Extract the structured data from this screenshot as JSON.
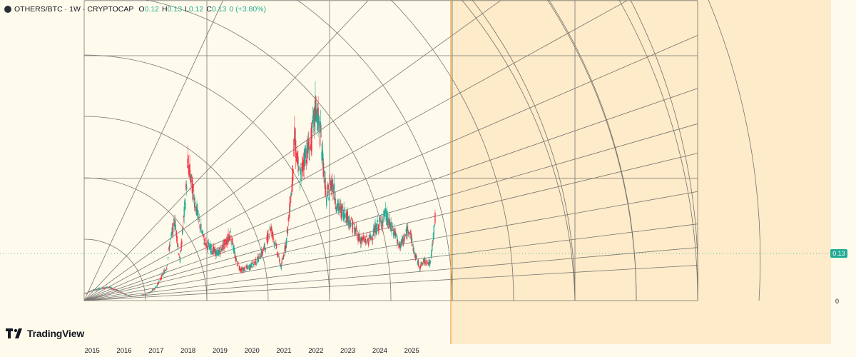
{
  "header": {
    "symbol": "OTHERS/BTC",
    "separator1": "·",
    "interval": "1W",
    "separator2": "·",
    "exchange": "CRYPTOCAP",
    "open_label": "O",
    "open_value": "0.12",
    "high_label": "H",
    "high_value": "0.13",
    "low_label": "L",
    "low_value": "0.12",
    "close_label": "C",
    "close_value": "0.13",
    "change": "0 (+3.80%)"
  },
  "price_scale": {
    "last_price_tag": "0.13",
    "zero_label": "0"
  },
  "time_axis": {
    "labels": [
      "2015",
      "2016",
      "2017",
      "2018",
      "2019",
      "2020",
      "2021",
      "2022",
      "2023",
      "2024",
      "2025"
    ]
  },
  "branding": {
    "logo_text": "TradingView"
  },
  "colors": {
    "background": "#fffbec",
    "projection_zone": "#fdebca",
    "vertical_marker": "#f0a040",
    "up_candle": "#22ab94",
    "down_candle": "#f23645",
    "grid_lines": "#555555",
    "accent": "#22ab94"
  },
  "chart_data": {
    "type": "candlestick",
    "symbol": "OTHERS/BTC",
    "interval": "1W",
    "x_range": [
      "2014-10",
      "2026-09"
    ],
    "y_range": [
      0,
      0.32
    ],
    "last_close": 0.13,
    "overlay": "gann-square-fan",
    "series": [
      {
        "date": "2014-10",
        "v": 0.01
      },
      {
        "date": "2015-01",
        "v": 0.015
      },
      {
        "date": "2015-04",
        "v": 0.018
      },
      {
        "date": "2015-07",
        "v": 0.02
      },
      {
        "date": "2015-10",
        "v": 0.016
      },
      {
        "date": "2016-01",
        "v": 0.01
      },
      {
        "date": "2016-04",
        "v": 0.006
      },
      {
        "date": "2016-07",
        "v": 0.008
      },
      {
        "date": "2016-10",
        "v": 0.01
      },
      {
        "date": "2017-01",
        "v": 0.02
      },
      {
        "date": "2017-03",
        "v": 0.035
      },
      {
        "date": "2017-05",
        "v": 0.05
      },
      {
        "date": "2017-06",
        "v": 0.08
      },
      {
        "date": "2017-08",
        "v": 0.12
      },
      {
        "date": "2017-10",
        "v": 0.06
      },
      {
        "date": "2017-12",
        "v": 0.15
      },
      {
        "date": "2018-01",
        "v": 0.205
      },
      {
        "date": "2018-03",
        "v": 0.16
      },
      {
        "date": "2018-05",
        "v": 0.12
      },
      {
        "date": "2018-07",
        "v": 0.09
      },
      {
        "date": "2018-09",
        "v": 0.08
      },
      {
        "date": "2018-12",
        "v": 0.07
      },
      {
        "date": "2019-03",
        "v": 0.085
      },
      {
        "date": "2019-05",
        "v": 0.1
      },
      {
        "date": "2019-07",
        "v": 0.06
      },
      {
        "date": "2019-09",
        "v": 0.045
      },
      {
        "date": "2019-12",
        "v": 0.05
      },
      {
        "date": "2020-03",
        "v": 0.06
      },
      {
        "date": "2020-06",
        "v": 0.08
      },
      {
        "date": "2020-08",
        "v": 0.11
      },
      {
        "date": "2020-10",
        "v": 0.08
      },
      {
        "date": "2020-12",
        "v": 0.05
      },
      {
        "date": "2021-02",
        "v": 0.09
      },
      {
        "date": "2021-04",
        "v": 0.17
      },
      {
        "date": "2021-05",
        "v": 0.24
      },
      {
        "date": "2021-07",
        "v": 0.18
      },
      {
        "date": "2021-09",
        "v": 0.22
      },
      {
        "date": "2021-11",
        "v": 0.23
      },
      {
        "date": "2022-01",
        "v": 0.29
      },
      {
        "date": "2022-03",
        "v": 0.24
      },
      {
        "date": "2022-05",
        "v": 0.15
      },
      {
        "date": "2022-07",
        "v": 0.18
      },
      {
        "date": "2022-09",
        "v": 0.14
      },
      {
        "date": "2022-12",
        "v": 0.13
      },
      {
        "date": "2023-03",
        "v": 0.11
      },
      {
        "date": "2023-06",
        "v": 0.09
      },
      {
        "date": "2023-09",
        "v": 0.09
      },
      {
        "date": "2023-12",
        "v": 0.11
      },
      {
        "date": "2024-02",
        "v": 0.12
      },
      {
        "date": "2024-03",
        "v": 0.13
      },
      {
        "date": "2024-05",
        "v": 0.11
      },
      {
        "date": "2024-07",
        "v": 0.1
      },
      {
        "date": "2024-08",
        "v": 0.08
      },
      {
        "date": "2024-10",
        "v": 0.09
      },
      {
        "date": "2024-12",
        "v": 0.11
      },
      {
        "date": "2025-02",
        "v": 0.07
      },
      {
        "date": "2025-04",
        "v": 0.05
      },
      {
        "date": "2025-06",
        "v": 0.06
      },
      {
        "date": "2025-08",
        "v": 0.055
      },
      {
        "date": "2025-10",
        "v": 0.13
      }
    ]
  }
}
